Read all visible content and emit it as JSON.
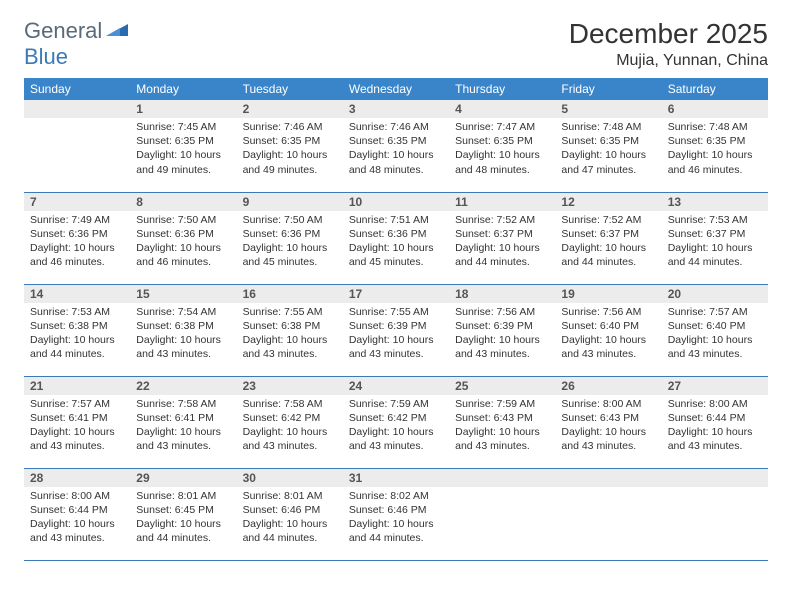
{
  "logo": {
    "text1": "General",
    "text2": "Blue"
  },
  "title": "December 2025",
  "location": "Mujia, Yunnan, China",
  "colors": {
    "header_bg": "#3a85c9",
    "header_text": "#ffffff",
    "daynum_bg": "#ececec",
    "border": "#3a7ab8",
    "logo_gray": "#5a6a7a",
    "logo_blue": "#3a7ab8"
  },
  "weekdays": [
    "Sunday",
    "Monday",
    "Tuesday",
    "Wednesday",
    "Thursday",
    "Friday",
    "Saturday"
  ],
  "weeks": [
    [
      null,
      {
        "n": "1",
        "sr": "7:45 AM",
        "ss": "6:35 PM",
        "dl": "10 hours and 49 minutes."
      },
      {
        "n": "2",
        "sr": "7:46 AM",
        "ss": "6:35 PM",
        "dl": "10 hours and 49 minutes."
      },
      {
        "n": "3",
        "sr": "7:46 AM",
        "ss": "6:35 PM",
        "dl": "10 hours and 48 minutes."
      },
      {
        "n": "4",
        "sr": "7:47 AM",
        "ss": "6:35 PM",
        "dl": "10 hours and 48 minutes."
      },
      {
        "n": "5",
        "sr": "7:48 AM",
        "ss": "6:35 PM",
        "dl": "10 hours and 47 minutes."
      },
      {
        "n": "6",
        "sr": "7:48 AM",
        "ss": "6:35 PM",
        "dl": "10 hours and 46 minutes."
      }
    ],
    [
      {
        "n": "7",
        "sr": "7:49 AM",
        "ss": "6:36 PM",
        "dl": "10 hours and 46 minutes."
      },
      {
        "n": "8",
        "sr": "7:50 AM",
        "ss": "6:36 PM",
        "dl": "10 hours and 46 minutes."
      },
      {
        "n": "9",
        "sr": "7:50 AM",
        "ss": "6:36 PM",
        "dl": "10 hours and 45 minutes."
      },
      {
        "n": "10",
        "sr": "7:51 AM",
        "ss": "6:36 PM",
        "dl": "10 hours and 45 minutes."
      },
      {
        "n": "11",
        "sr": "7:52 AM",
        "ss": "6:37 PM",
        "dl": "10 hours and 44 minutes."
      },
      {
        "n": "12",
        "sr": "7:52 AM",
        "ss": "6:37 PM",
        "dl": "10 hours and 44 minutes."
      },
      {
        "n": "13",
        "sr": "7:53 AM",
        "ss": "6:37 PM",
        "dl": "10 hours and 44 minutes."
      }
    ],
    [
      {
        "n": "14",
        "sr": "7:53 AM",
        "ss": "6:38 PM",
        "dl": "10 hours and 44 minutes."
      },
      {
        "n": "15",
        "sr": "7:54 AM",
        "ss": "6:38 PM",
        "dl": "10 hours and 43 minutes."
      },
      {
        "n": "16",
        "sr": "7:55 AM",
        "ss": "6:38 PM",
        "dl": "10 hours and 43 minutes."
      },
      {
        "n": "17",
        "sr": "7:55 AM",
        "ss": "6:39 PM",
        "dl": "10 hours and 43 minutes."
      },
      {
        "n": "18",
        "sr": "7:56 AM",
        "ss": "6:39 PM",
        "dl": "10 hours and 43 minutes."
      },
      {
        "n": "19",
        "sr": "7:56 AM",
        "ss": "6:40 PM",
        "dl": "10 hours and 43 minutes."
      },
      {
        "n": "20",
        "sr": "7:57 AM",
        "ss": "6:40 PM",
        "dl": "10 hours and 43 minutes."
      }
    ],
    [
      {
        "n": "21",
        "sr": "7:57 AM",
        "ss": "6:41 PM",
        "dl": "10 hours and 43 minutes."
      },
      {
        "n": "22",
        "sr": "7:58 AM",
        "ss": "6:41 PM",
        "dl": "10 hours and 43 minutes."
      },
      {
        "n": "23",
        "sr": "7:58 AM",
        "ss": "6:42 PM",
        "dl": "10 hours and 43 minutes."
      },
      {
        "n": "24",
        "sr": "7:59 AM",
        "ss": "6:42 PM",
        "dl": "10 hours and 43 minutes."
      },
      {
        "n": "25",
        "sr": "7:59 AM",
        "ss": "6:43 PM",
        "dl": "10 hours and 43 minutes."
      },
      {
        "n": "26",
        "sr": "8:00 AM",
        "ss": "6:43 PM",
        "dl": "10 hours and 43 minutes."
      },
      {
        "n": "27",
        "sr": "8:00 AM",
        "ss": "6:44 PM",
        "dl": "10 hours and 43 minutes."
      }
    ],
    [
      {
        "n": "28",
        "sr": "8:00 AM",
        "ss": "6:44 PM",
        "dl": "10 hours and 43 minutes."
      },
      {
        "n": "29",
        "sr": "8:01 AM",
        "ss": "6:45 PM",
        "dl": "10 hours and 44 minutes."
      },
      {
        "n": "30",
        "sr": "8:01 AM",
        "ss": "6:46 PM",
        "dl": "10 hours and 44 minutes."
      },
      {
        "n": "31",
        "sr": "8:02 AM",
        "ss": "6:46 PM",
        "dl": "10 hours and 44 minutes."
      },
      null,
      null,
      null
    ]
  ],
  "labels": {
    "sunrise": "Sunrise:",
    "sunset": "Sunset:",
    "daylight": "Daylight:"
  }
}
